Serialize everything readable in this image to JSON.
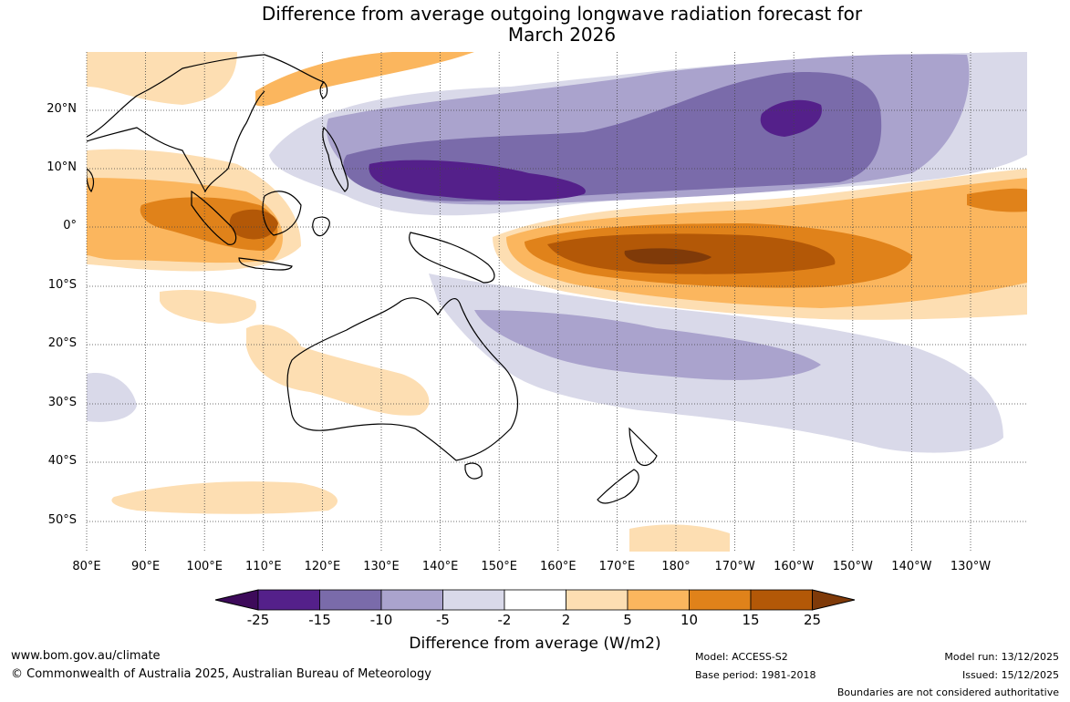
{
  "title": {
    "line1": "Difference from average outgoing longwave radiation forecast for",
    "line2": "March 2026"
  },
  "map": {
    "lat_labels": [
      "20°N",
      "10°N",
      "0°",
      "10°S",
      "20°S",
      "30°S",
      "40°S",
      "50°S"
    ],
    "lon_labels": [
      "80°E",
      "90°E",
      "100°E",
      "110°E",
      "120°E",
      "130°E",
      "140°E",
      "150°E",
      "160°E",
      "170°E",
      "180°",
      "170°W",
      "160°W",
      "150°W",
      "140°W",
      "130°W"
    ]
  },
  "colorbar": {
    "ticks": [
      "-25",
      "-15",
      "-10",
      "-5",
      "-2",
      "2",
      "5",
      "10",
      "15",
      "25"
    ],
    "label": "Difference from average (W/m2)",
    "colors": [
      "#3d0a5a",
      "#54208a",
      "#7a6baa",
      "#aaa3cd",
      "#d9d9e9",
      "#ffffff",
      "#fddeb2",
      "#fbb65e",
      "#e0821a",
      "#b35807",
      "#7f3a09"
    ]
  },
  "footer": {
    "url": "www.bom.gov.au/climate",
    "copyright": "© Commonwealth of Australia 2025, Australian Bureau of Meteorology",
    "model": "Model: ACCESS-S2",
    "base_period": "Base period: 1981-2018",
    "model_run": "Model run: 13/12/2025",
    "issued": "Issued: 15/12/2025",
    "boundaries": "Boundaries are not considered authoritative"
  }
}
